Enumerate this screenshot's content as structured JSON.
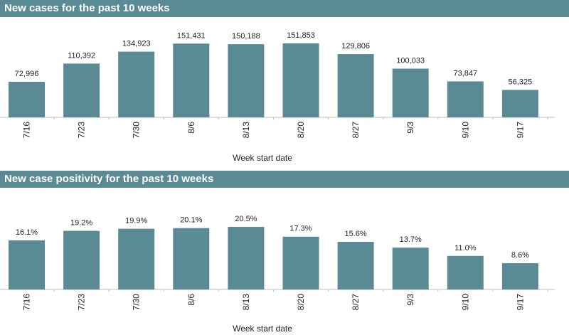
{
  "colors": {
    "bar": "#5a8a93",
    "header": "#5a8a93"
  },
  "chart_data": [
    {
      "type": "bar",
      "title": "New cases for the past 10 weeks",
      "xlabel": "Week start date",
      "ylabel": "",
      "categories": [
        "7/16",
        "7/23",
        "7/30",
        "8/6",
        "8/13",
        "8/20",
        "8/27",
        "9/3",
        "9/10",
        "9/17"
      ],
      "values": [
        72996,
        110392,
        134923,
        151431,
        150188,
        151853,
        129806,
        100033,
        73847,
        56325
      ],
      "data_labels": [
        "72,996",
        "110,392",
        "134,923",
        "151,431",
        "150,188",
        "151,853",
        "129,806",
        "100,033",
        "73,847",
        "56,325"
      ],
      "ylim": [
        0,
        151853
      ],
      "grid": false,
      "legend": "none"
    },
    {
      "type": "bar",
      "title": "New case positivity for the past 10 weeks",
      "xlabel": "Week start date",
      "ylabel": "",
      "categories": [
        "7/16",
        "7/23",
        "7/30",
        "8/6",
        "8/13",
        "8/20",
        "8/27",
        "9/3",
        "9/10",
        "9/17"
      ],
      "values": [
        16.1,
        19.2,
        19.9,
        20.1,
        20.5,
        17.3,
        15.6,
        13.7,
        11.0,
        8.6
      ],
      "data_labels": [
        "16.1%",
        "19.2%",
        "19.9%",
        "20.1%",
        "20.5%",
        "17.3%",
        "15.6%",
        "13.7%",
        "11.0%",
        "8.6%"
      ],
      "ylim": [
        0,
        20.5
      ],
      "grid": false,
      "legend": "none"
    }
  ]
}
